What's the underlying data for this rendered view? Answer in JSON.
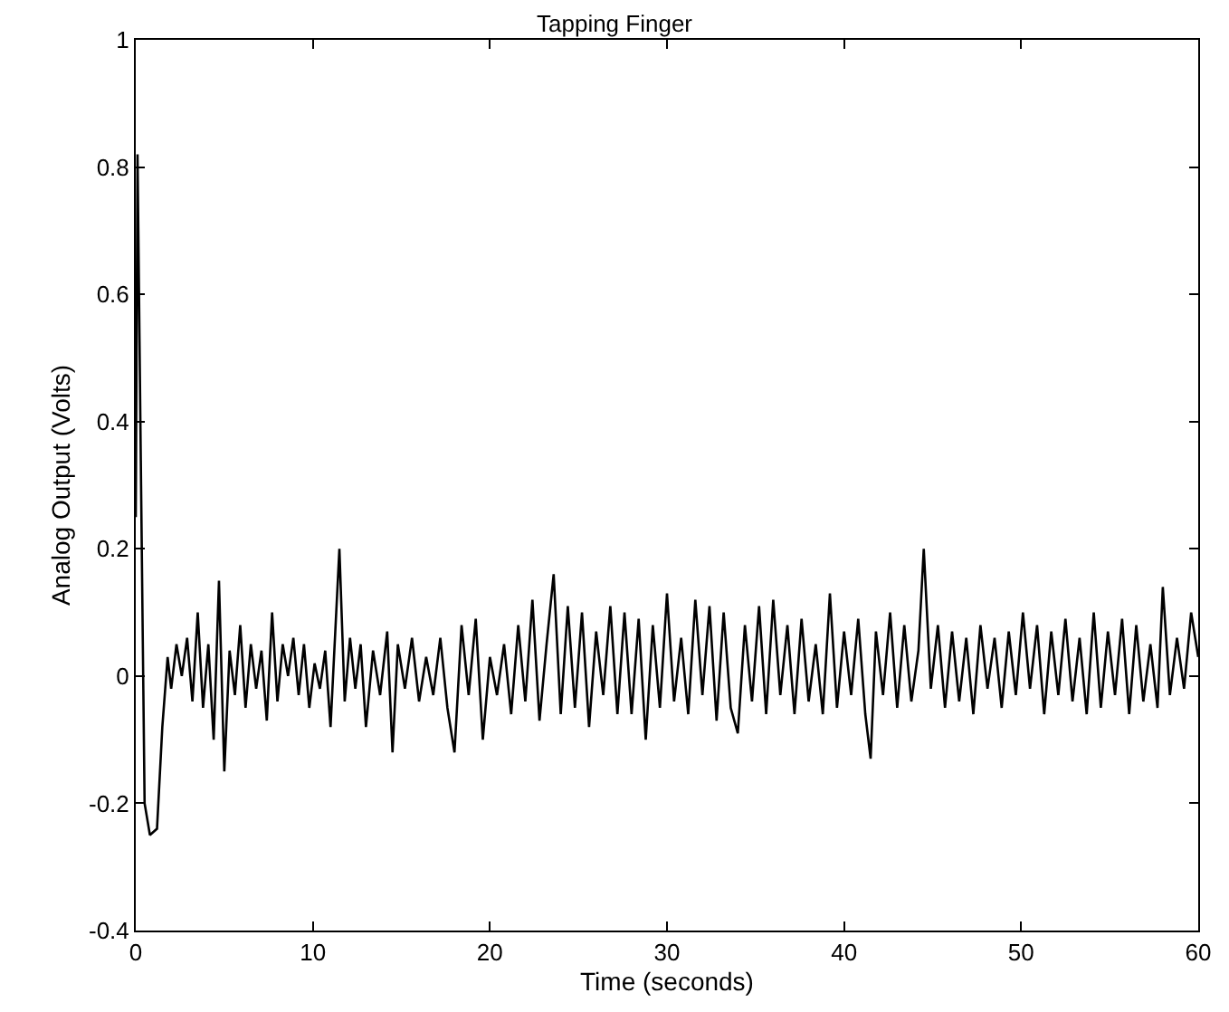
{
  "chart_data": {
    "type": "line",
    "title": "Tapping Finger",
    "xlabel": "Time (seconds)",
    "ylabel": "Analog Output (Volts)",
    "xlim": [
      0,
      60
    ],
    "xticks": [
      0,
      10,
      20,
      30,
      40,
      50,
      60
    ],
    "ylim": [
      -0.4,
      1
    ],
    "yticks": [
      -0.4,
      -0.2,
      0,
      0.2,
      0.4,
      0.6,
      0.8,
      1
    ],
    "grid": false,
    "marker": "none",
    "line_style": "solid",
    "series": [
      {
        "color": "#000000",
        "x": [
          0,
          0.1,
          0.3,
          0.5,
          0.8,
          1.2,
          1.5,
          1.8,
          2.0,
          2.3,
          2.6,
          2.9,
          3.2,
          3.5,
          3.8,
          4.1,
          4.4,
          4.7,
          5.0,
          5.3,
          5.6,
          5.9,
          6.2,
          6.5,
          6.8,
          7.1,
          7.4,
          7.7,
          8.0,
          8.3,
          8.6,
          8.9,
          9.2,
          9.5,
          9.8,
          10.1,
          10.4,
          10.7,
          11.0,
          11.5,
          11.8,
          12.1,
          12.4,
          12.7,
          13.0,
          13.4,
          13.8,
          14.2,
          14.5,
          14.8,
          15.2,
          15.6,
          16.0,
          16.4,
          16.8,
          17.2,
          17.6,
          18.0,
          18.4,
          18.8,
          19.2,
          19.6,
          20.0,
          20.4,
          20.8,
          21.2,
          21.6,
          22.0,
          22.4,
          22.8,
          23.2,
          23.6,
          24.0,
          24.4,
          24.8,
          25.2,
          25.6,
          26.0,
          26.4,
          26.8,
          27.2,
          27.6,
          28.0,
          28.4,
          28.8,
          29.2,
          29.6,
          30.0,
          30.4,
          30.8,
          31.2,
          31.6,
          32.0,
          32.4,
          32.8,
          33.2,
          33.6,
          34.0,
          34.4,
          34.8,
          35.2,
          35.6,
          36.0,
          36.4,
          36.8,
          37.2,
          37.6,
          38.0,
          38.4,
          38.8,
          39.2,
          39.6,
          40.0,
          40.4,
          40.8,
          41.2,
          41.5,
          41.8,
          42.2,
          42.6,
          43.0,
          43.4,
          43.8,
          44.2,
          44.5,
          44.9,
          45.3,
          45.7,
          46.1,
          46.5,
          46.9,
          47.3,
          47.7,
          48.1,
          48.5,
          48.9,
          49.3,
          49.7,
          50.1,
          50.5,
          50.9,
          51.3,
          51.7,
          52.1,
          52.5,
          52.9,
          53.3,
          53.7,
          54.1,
          54.5,
          54.9,
          55.3,
          55.7,
          56.1,
          56.5,
          56.9,
          57.3,
          57.7,
          58.0,
          58.4,
          58.8,
          59.2,
          59.6,
          60.0
        ],
        "values": [
          0.25,
          0.82,
          0.3,
          -0.2,
          -0.25,
          -0.24,
          -0.08,
          0.03,
          -0.02,
          0.05,
          0.0,
          0.06,
          -0.04,
          0.1,
          -0.05,
          0.05,
          -0.1,
          0.15,
          -0.15,
          0.04,
          -0.03,
          0.08,
          -0.05,
          0.05,
          -0.02,
          0.04,
          -0.07,
          0.1,
          -0.04,
          0.05,
          0.0,
          0.06,
          -0.03,
          0.05,
          -0.05,
          0.02,
          -0.02,
          0.04,
          -0.08,
          0.2,
          -0.04,
          0.06,
          -0.02,
          0.05,
          -0.08,
          0.04,
          -0.03,
          0.07,
          -0.12,
          0.05,
          -0.02,
          0.06,
          -0.04,
          0.03,
          -0.03,
          0.06,
          -0.05,
          -0.12,
          0.08,
          -0.03,
          0.09,
          -0.1,
          0.03,
          -0.03,
          0.05,
          -0.06,
          0.08,
          -0.04,
          0.12,
          -0.07,
          0.05,
          0.16,
          -0.06,
          0.11,
          -0.05,
          0.1,
          -0.08,
          0.07,
          -0.03,
          0.11,
          -0.06,
          0.1,
          -0.06,
          0.09,
          -0.1,
          0.08,
          -0.05,
          0.13,
          -0.04,
          0.06,
          -0.06,
          0.12,
          -0.03,
          0.11,
          -0.07,
          0.1,
          -0.05,
          -0.09,
          0.08,
          -0.04,
          0.11,
          -0.06,
          0.12,
          -0.03,
          0.08,
          -0.06,
          0.09,
          -0.04,
          0.05,
          -0.06,
          0.13,
          -0.05,
          0.07,
          -0.03,
          0.09,
          -0.06,
          -0.13,
          0.07,
          -0.03,
          0.1,
          -0.05,
          0.08,
          -0.04,
          0.04,
          0.2,
          -0.02,
          0.08,
          -0.05,
          0.07,
          -0.04,
          0.06,
          -0.06,
          0.08,
          -0.02,
          0.06,
          -0.05,
          0.07,
          -0.03,
          0.1,
          -0.02,
          0.08,
          -0.06,
          0.07,
          -0.03,
          0.09,
          -0.04,
          0.06,
          -0.06,
          0.1,
          -0.05,
          0.07,
          -0.03,
          0.09,
          -0.06,
          0.08,
          -0.04,
          0.05,
          -0.05,
          0.14,
          -0.03,
          0.06,
          -0.02,
          0.1,
          0.03
        ]
      }
    ]
  }
}
